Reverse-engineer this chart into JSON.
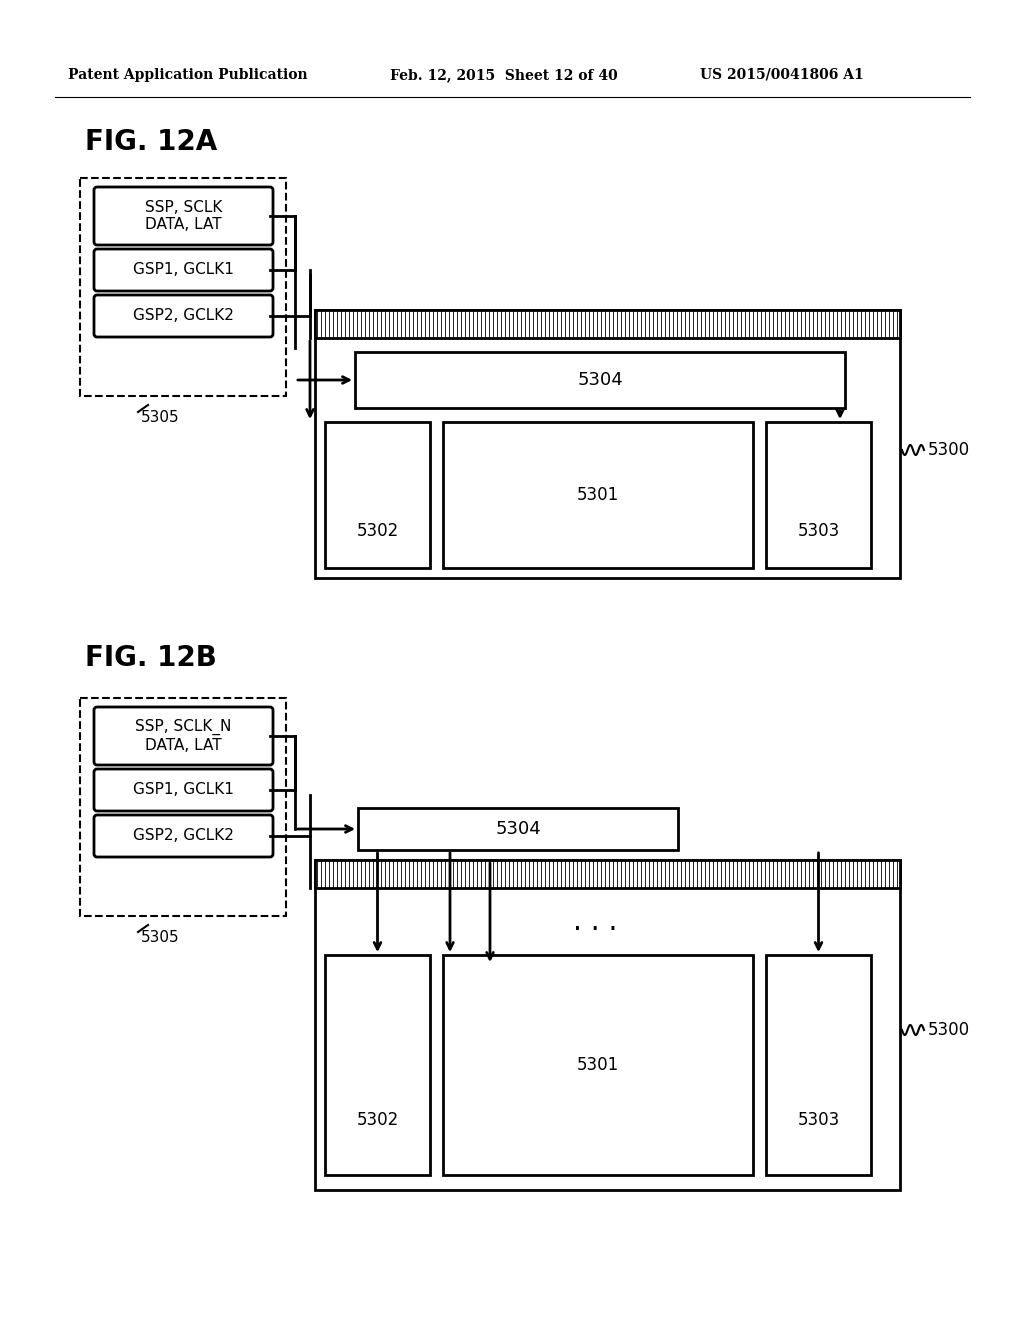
{
  "bg_color": "#ffffff",
  "header_left": "Patent Application Publication",
  "header_mid": "Feb. 12, 2015  Sheet 12 of 40",
  "header_right": "US 2015/0041806 A1",
  "fig_a_label": "FIG. 12A",
  "fig_b_label": "FIG. 12B",
  "ssp_a": "SSP, SCLK\nDATA, LAT",
  "gsp1_a": "GSP1, GCLK1",
  "gsp2_a": "GSP2, GCLK2",
  "ssp_b": "SSP, SCLK_N\nDATA, LAT",
  "gsp1_b": "GSP1, GCLK1",
  "gsp2_b": "GSP2, GCLK2",
  "label_5305": "5305",
  "label_5304": "5304",
  "label_5302": "5302",
  "label_5301": "5301",
  "label_5303": "5303",
  "label_5300": "5300",
  "dots": "· · ·"
}
